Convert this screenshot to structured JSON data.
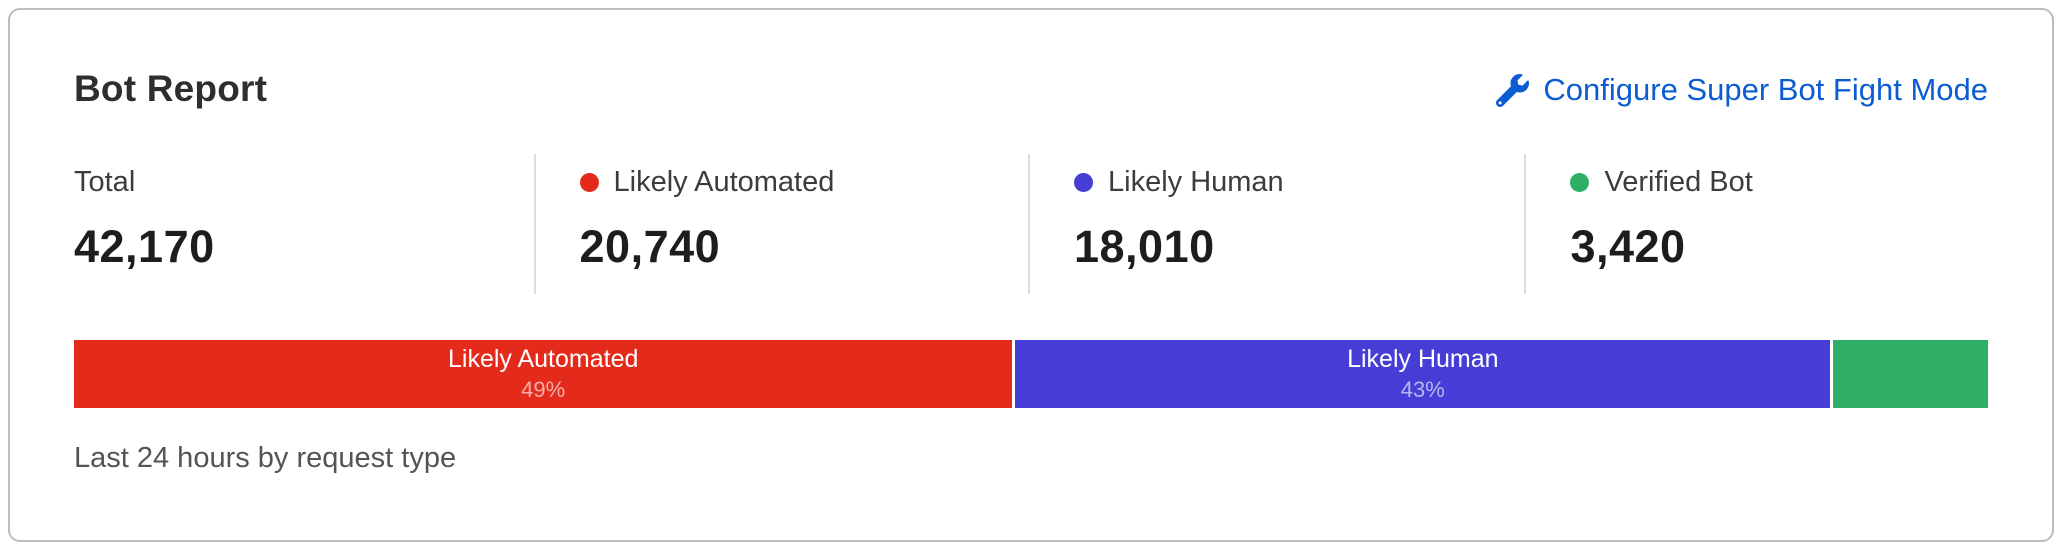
{
  "card": {
    "title": "Bot Report",
    "configure_link": {
      "label": "Configure Super Bot Fight Mode",
      "icon": "wrench-icon",
      "color": "#0d5dd2"
    },
    "caption": "Last 24 hours by request type"
  },
  "stats": [
    {
      "label": "Total",
      "value": "42,170",
      "dot": null
    },
    {
      "label": "Likely Automated",
      "value": "20,740",
      "dot": "#e42a1a"
    },
    {
      "label": "Likely Human",
      "value": "18,010",
      "dot": "#453dd6"
    },
    {
      "label": "Verified Bot",
      "value": "3,420",
      "dot": "#2fae68"
    }
  ],
  "chart_data": {
    "type": "bar",
    "variant": "stacked-horizontal-100pct",
    "title": "Bot Report",
    "caption": "Last 24 hours by request type",
    "total": 42170,
    "categories": [
      "Likely Automated",
      "Likely Human",
      "Verified Bot"
    ],
    "values": [
      20740,
      18010,
      3420
    ],
    "percent_labels": [
      "49%",
      "43%",
      ""
    ],
    "colors": [
      "#e42a1a",
      "#453dd6",
      "#2fae68"
    ],
    "show_segment_labels": [
      true,
      true,
      false
    ],
    "legend_position": "top",
    "grid": false
  }
}
